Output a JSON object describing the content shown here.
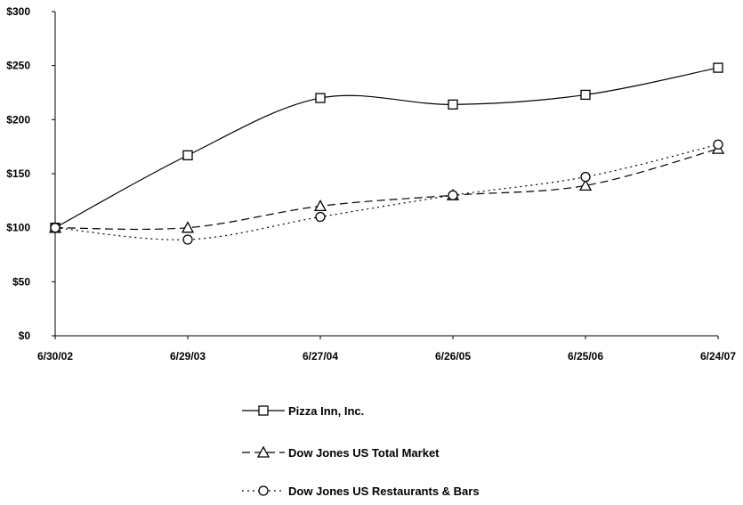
{
  "chart_data": {
    "type": "line",
    "title": "",
    "xlabel": "",
    "ylabel": "",
    "categories": [
      "6/30/02",
      "6/29/03",
      "6/27/04",
      "6/26/05",
      "6/25/06",
      "6/24/07"
    ],
    "ylim": [
      0,
      300
    ],
    "yticks": [
      0,
      50,
      100,
      150,
      200,
      250,
      300
    ],
    "ytick_labels": [
      "$0",
      "$50",
      "$100",
      "$150",
      "$200",
      "$250",
      "$300"
    ],
    "grid": false,
    "legend_position": "bottom",
    "series": [
      {
        "name": "Pizza Inn, Inc.",
        "values": [
          100,
          167,
          220,
          214,
          223,
          248
        ],
        "marker": "square",
        "line": "solid"
      },
      {
        "name": "Dow Jones US Total Market",
        "values": [
          100,
          100,
          120,
          130,
          139,
          173
        ],
        "marker": "triangle",
        "line": "dashed"
      },
      {
        "name": "Dow Jones US Restaurants & Bars",
        "values": [
          100,
          89,
          110,
          130,
          147,
          177
        ],
        "marker": "circle",
        "line": "dotted"
      }
    ]
  }
}
